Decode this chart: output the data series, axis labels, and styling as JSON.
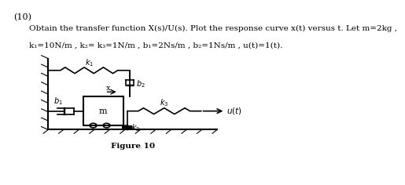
{
  "title_num": "(10)",
  "line1": "Obtain the transfer function X(s)/U(s). Plot the response curve x(t) versus t. Let m=2kg ,",
  "line2": "k₁=10N/m , k₂= k₃=1N/m , b₁=2Ns/m , b₂=1Ns/m , u(t)=1(t).",
  "figure_label": "Figure 10",
  "bg_color": "#ffffff",
  "line_color": "#000000",
  "font_size": 7.5,
  "title_font_size": 8
}
